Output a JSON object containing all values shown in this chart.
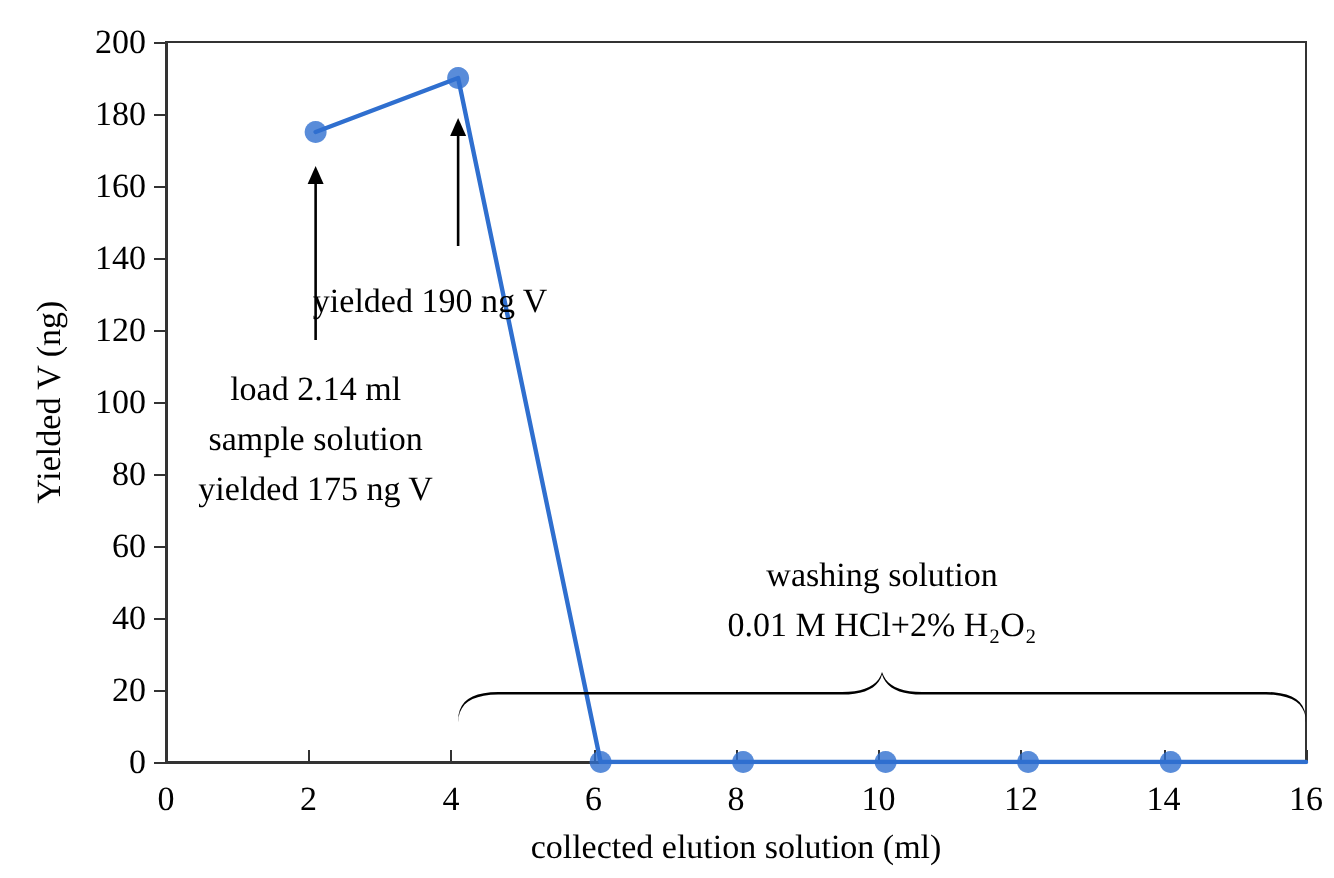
{
  "chart_data": {
    "type": "line",
    "xlabel": "collected elution solution (ml)",
    "ylabel": "Yielded V (ng)",
    "xlim": [
      0,
      16
    ],
    "xticks": [
      0,
      2,
      4,
      6,
      8,
      10,
      12,
      14,
      16
    ],
    "ylim": [
      0,
      200
    ],
    "yticks": [
      0,
      20,
      40,
      60,
      80,
      100,
      120,
      140,
      160,
      180,
      200
    ],
    "series": [
      {
        "color": "#2f6fcf",
        "x": [
          2.1,
          4.1,
          6.1,
          8.1,
          10.1,
          12.1,
          14.1,
          16
        ],
        "values": [
          175,
          190,
          0,
          0,
          0,
          0,
          0,
          0
        ],
        "marker": "none"
      },
      {
        "type": "scatter",
        "color": "#2f6fcf",
        "x": [
          2.1,
          4.1,
          6.1,
          8.1,
          10.1,
          12.1,
          14.1
        ],
        "values": [
          175,
          190,
          0,
          0,
          0,
          0,
          0
        ]
      }
    ],
    "marker": "circle",
    "line_style": "solid",
    "grid": false,
    "annotations": [
      "load 2.14 ml\nsample solution\nyielded 175 ng V",
      "yielded 190 ng V",
      "washing solution\n0.01 M HCl+2% H₂O₂"
    ]
  }
}
